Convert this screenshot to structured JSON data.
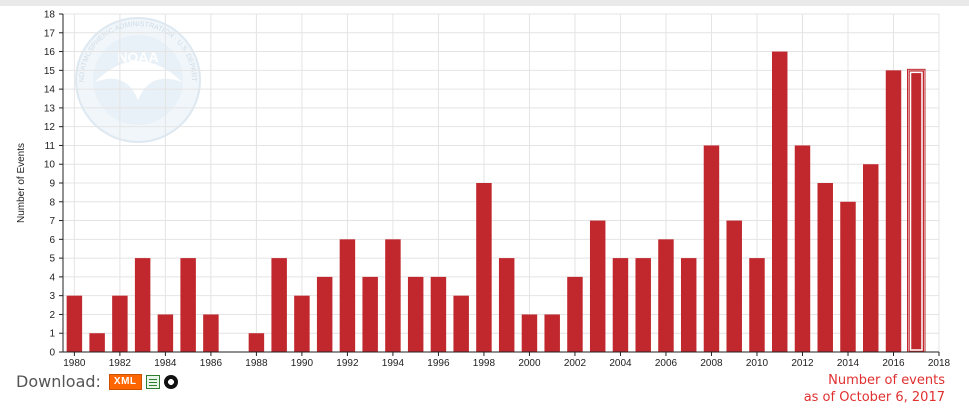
{
  "chart_data": {
    "type": "bar",
    "title": "",
    "xlabel": "",
    "ylabel": "Number of Events",
    "ylim": [
      0,
      18
    ],
    "yticks": [
      "0",
      "1",
      "2",
      "3",
      "4",
      "5",
      "6",
      "7",
      "8",
      "9",
      "10",
      "11",
      "12",
      "13",
      "14",
      "15",
      "16",
      "17",
      "18"
    ],
    "xticks": [
      "1980",
      "1982",
      "1984",
      "1986",
      "1988",
      "1990",
      "1992",
      "1994",
      "1996",
      "1998",
      "2000",
      "2002",
      "2004",
      "2006",
      "2008",
      "2010",
      "2012",
      "2014",
      "2016",
      "2018"
    ],
    "x": [
      1980,
      1981,
      1982,
      1983,
      1984,
      1985,
      1986,
      1987,
      1988,
      1989,
      1990,
      1991,
      1992,
      1993,
      1994,
      1995,
      1996,
      1997,
      1998,
      1999,
      2000,
      2001,
      2002,
      2003,
      2004,
      2005,
      2006,
      2007,
      2008,
      2009,
      2010,
      2011,
      2012,
      2013,
      2014,
      2015,
      2016,
      2017
    ],
    "values": [
      3,
      1,
      3,
      5,
      2,
      5,
      2,
      0,
      1,
      5,
      3,
      4,
      6,
      4,
      6,
      4,
      4,
      3,
      9,
      5,
      2,
      2,
      4,
      7,
      5,
      5,
      6,
      5,
      11,
      7,
      5,
      16,
      11,
      9,
      8,
      10,
      15,
      15
    ],
    "highlight_year": 2017,
    "grid": true,
    "colors": {
      "bar": "#c0282d",
      "highlight_bar": "#c0282d",
      "highlight_outline": "#ffffff",
      "grid": "#e4e4e4",
      "axis": "#222222"
    },
    "watermark": {
      "type": "logo",
      "text": "NOAA",
      "ring_text": "NATIONAL OCEANIC AND ATMOSPHERIC ADMINISTRATION · U.S. DEPARTMENT OF COMMERCE"
    }
  },
  "download": {
    "label": "Download:",
    "xml_label": "XML",
    "icons": [
      "excel-icon",
      "ring-icon"
    ]
  },
  "note": {
    "line1": "Number of events",
    "line2": "as of October 6, 2017",
    "color": "#e03030"
  }
}
